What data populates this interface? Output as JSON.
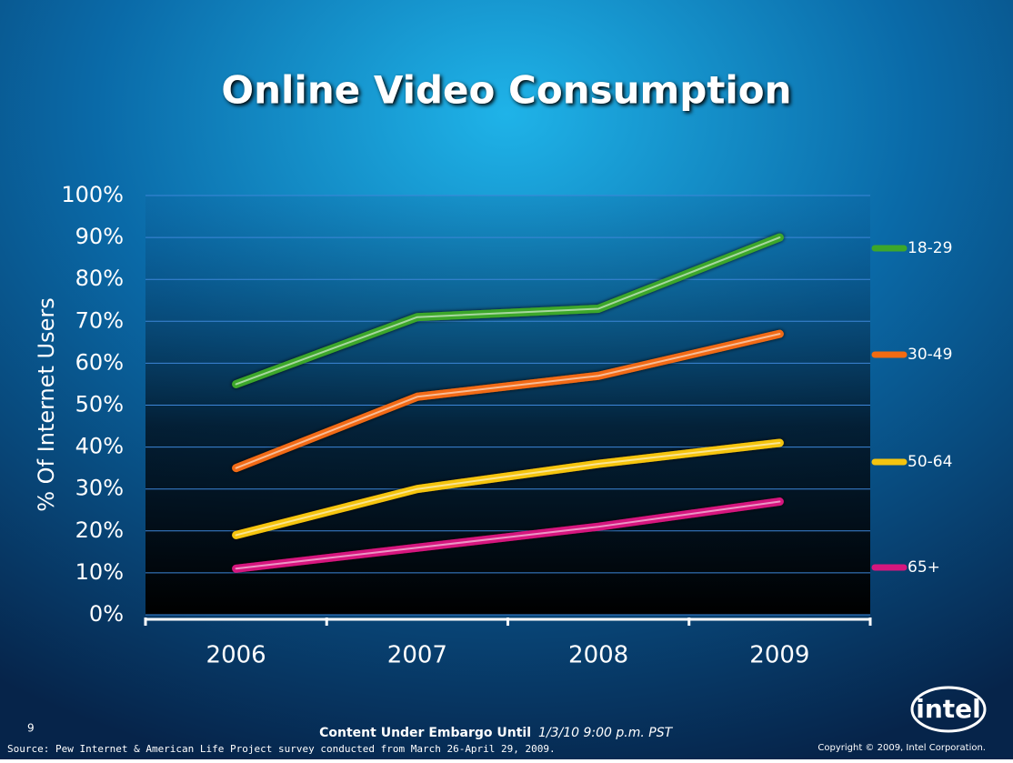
{
  "chart_data": {
    "type": "line",
    "title": "Online Video Consumption",
    "y_label": "% Of Internet Users",
    "categories": [
      "2006",
      "2007",
      "2008",
      "2009"
    ],
    "series": [
      {
        "name": "18-29",
        "color": "#3da72a",
        "values": [
          55,
          71,
          73,
          90
        ]
      },
      {
        "name": "30-49",
        "color": "#f26b12",
        "values": [
          35,
          52,
          57,
          67
        ]
      },
      {
        "name": "50-64",
        "color": "#f5c40f",
        "values": [
          19,
          30,
          36,
          41
        ]
      },
      {
        "name": "65+",
        "color": "#d6177e",
        "values": [
          11,
          16,
          21,
          27
        ]
      }
    ],
    "ylim": [
      0,
      100
    ],
    "yticks": [
      {
        "value": 0,
        "label": "0%"
      },
      {
        "value": 10,
        "label": "10%"
      },
      {
        "value": 20,
        "label": "20%"
      },
      {
        "value": 30,
        "label": "30%"
      },
      {
        "value": 40,
        "label": "40%"
      },
      {
        "value": 50,
        "label": "50%"
      },
      {
        "value": 60,
        "label": "60%"
      },
      {
        "value": 70,
        "label": "70%"
      },
      {
        "value": 80,
        "label": "80%"
      },
      {
        "value": 90,
        "label": "90%"
      },
      {
        "value": 100,
        "label": "100%"
      }
    ],
    "grid": true
  },
  "footer": {
    "page": "9",
    "embargo": "Content Under Embargo Until",
    "embargo_date": "1/3/10 9:00 p.m. PST",
    "source": "Source: Pew Internet & American Life Project survey conducted from March 26-April 29, 2009.",
    "copyright": "Copyright © 2009, Intel Corporation.",
    "logo": "intel"
  }
}
